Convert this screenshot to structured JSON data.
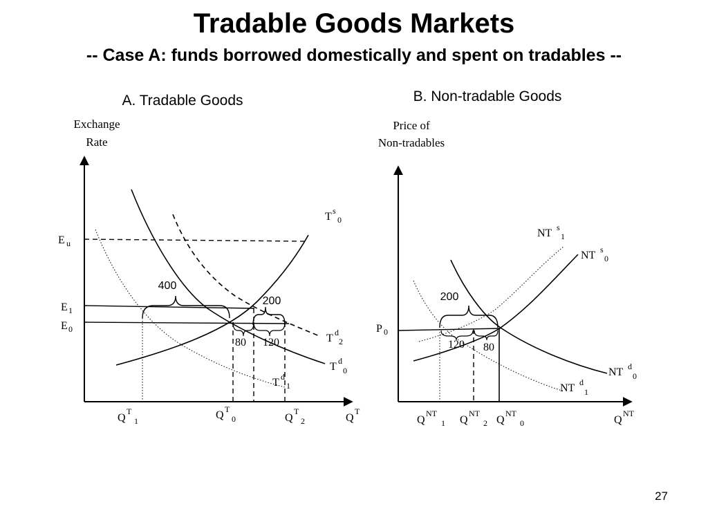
{
  "slide": {
    "title": "Tradable Goods Markets",
    "subtitle": "-- Case A: funds borrowed domestically and spent on tradables --",
    "page_number": "27"
  },
  "panel_a": {
    "heading": "A. Tradable Goods",
    "y_axis_line1": "Exchange",
    "y_axis_line2": "Rate",
    "x_axis": "Q",
    "x_axis_sup": "T",
    "price_labels": [
      {
        "main": "E",
        "sub": "u"
      },
      {
        "main": "E",
        "sub": "1"
      },
      {
        "main": "E",
        "sub": "0"
      }
    ],
    "quantity_labels": [
      {
        "main": "Q",
        "sup": "T",
        "sub": "1"
      },
      {
        "main": "Q",
        "sup": "T",
        "sub": "0"
      },
      {
        "main": "Q",
        "sup": "T",
        "sub": "2"
      }
    ],
    "curves": [
      {
        "main": "T",
        "sup": "s",
        "sub": "0"
      },
      {
        "main": "T",
        "sup": "d",
        "sub": "2"
      },
      {
        "main": "T",
        "sup": "d",
        "sub": "0"
      },
      {
        "main": "T",
        "sup": "d",
        "sub": "1"
      }
    ],
    "annotations": [
      "400",
      "200",
      "80",
      "120"
    ]
  },
  "panel_b": {
    "heading": "B. Non-tradable Goods",
    "y_axis_line1": "Price of",
    "y_axis_line2": "Non-tradables",
    "x_axis": "Q",
    "x_axis_sup": "NT",
    "price_label": {
      "main": "P",
      "sub": "0"
    },
    "quantity_labels": [
      {
        "main": "Q",
        "sup": "NT",
        "sub": "1"
      },
      {
        "main": "Q",
        "sup": "NT",
        "sub": "2"
      },
      {
        "main": "Q",
        "sup": "NT",
        "sub": "0"
      }
    ],
    "curves": [
      {
        "main": "NT",
        "sup": "s",
        "sub": "1"
      },
      {
        "main": "NT",
        "sup": "s",
        "sub": "0"
      },
      {
        "main": "NT",
        "sup": "d",
        "sub": "0"
      },
      {
        "main": "NT",
        "sup": "d",
        "sub": "1"
      }
    ],
    "annotations": [
      "200",
      "120",
      "80"
    ]
  }
}
